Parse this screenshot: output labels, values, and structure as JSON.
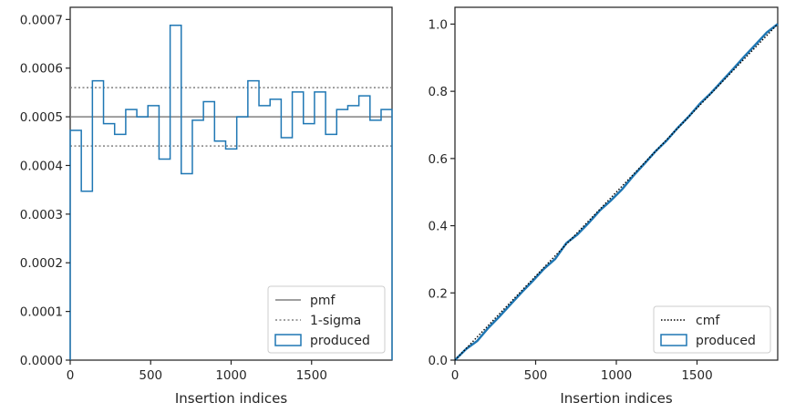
{
  "colors": {
    "produced": "#1f77b4",
    "pmf": "#808080",
    "sigma": "#808080",
    "cmf": "#000000",
    "axes": "#262626",
    "legend_border": "#cccccc"
  },
  "chart_data": [
    {
      "type": "histogram",
      "title": "",
      "xlabel": "Insertion indices",
      "ylabel": "",
      "xlim": [
        0,
        2000
      ],
      "ylim": [
        0,
        0.000725
      ],
      "xticks": [
        0,
        500,
        1000,
        1500
      ],
      "xtick_labels": [
        "0",
        "500",
        "1000",
        "1500"
      ],
      "yticks": [
        0,
        0.0001,
        0.0002,
        0.0003,
        0.0004,
        0.0005,
        0.0006,
        0.0007
      ],
      "ytick_labels": [
        "0.0000",
        "0.0001",
        "0.0002",
        "0.0003",
        "0.0004",
        "0.0005",
        "0.0006",
        "0.0007"
      ],
      "grid": false,
      "legend_position": "lower right",
      "legend": [
        "pmf",
        "1-sigma",
        "produced"
      ],
      "pmf": 0.0005,
      "sigma_band": [
        0.00044,
        0.00056
      ],
      "produced": {
        "bin_edges": [
          0,
          69,
          138,
          207,
          276,
          345,
          414,
          483,
          552,
          621,
          690,
          759,
          828,
          897,
          966,
          1035,
          1104,
          1173,
          1242,
          1311,
          1380,
          1449,
          1518,
          1587,
          1656,
          1725,
          1794,
          1863,
          1932,
          2000
        ],
        "values": [
          0.000472,
          0.000347,
          0.000574,
          0.000486,
          0.000464,
          0.000515,
          0.0005,
          0.000523,
          0.000413,
          0.000688,
          0.000383,
          0.000493,
          0.000531,
          0.00045,
          0.000434,
          0.0005,
          0.000574,
          0.000523,
          0.000536,
          0.000457,
          0.000551,
          0.000486,
          0.000551,
          0.000464,
          0.000515,
          0.000523,
          0.000543,
          0.000493,
          0.000515
        ]
      }
    },
    {
      "type": "line",
      "title": "",
      "xlabel": "Insertion indices",
      "ylabel": "",
      "xlim": [
        0,
        2000
      ],
      "ylim": [
        0,
        1.05
      ],
      "xticks": [
        0,
        500,
        1000,
        1500
      ],
      "xtick_labels": [
        "0",
        "500",
        "1000",
        "1500"
      ],
      "yticks": [
        0,
        0.2,
        0.4,
        0.6,
        0.8,
        1.0
      ],
      "ytick_labels": [
        "0.0",
        "0.2",
        "0.4",
        "0.6",
        "0.8",
        "1.0"
      ],
      "grid": false,
      "legend_position": "lower right",
      "legend": [
        "cmf",
        "produced"
      ],
      "cmf": {
        "x": [
          0,
          2000
        ],
        "y": [
          0,
          1.0
        ]
      },
      "produced": {
        "x": [
          0,
          69,
          138,
          207,
          276,
          345,
          414,
          483,
          552,
          621,
          690,
          759,
          828,
          897,
          966,
          1035,
          1104,
          1173,
          1242,
          1311,
          1380,
          1449,
          1518,
          1587,
          1656,
          1725,
          1794,
          1863,
          1932,
          2000
        ],
        "y": [
          0,
          0.033,
          0.057,
          0.096,
          0.13,
          0.166,
          0.202,
          0.236,
          0.272,
          0.301,
          0.348,
          0.374,
          0.408,
          0.445,
          0.475,
          0.508,
          0.548,
          0.584,
          0.621,
          0.653,
          0.691,
          0.725,
          0.763,
          0.795,
          0.831,
          0.867,
          0.904,
          0.939,
          0.975,
          1.0
        ]
      }
    }
  ]
}
